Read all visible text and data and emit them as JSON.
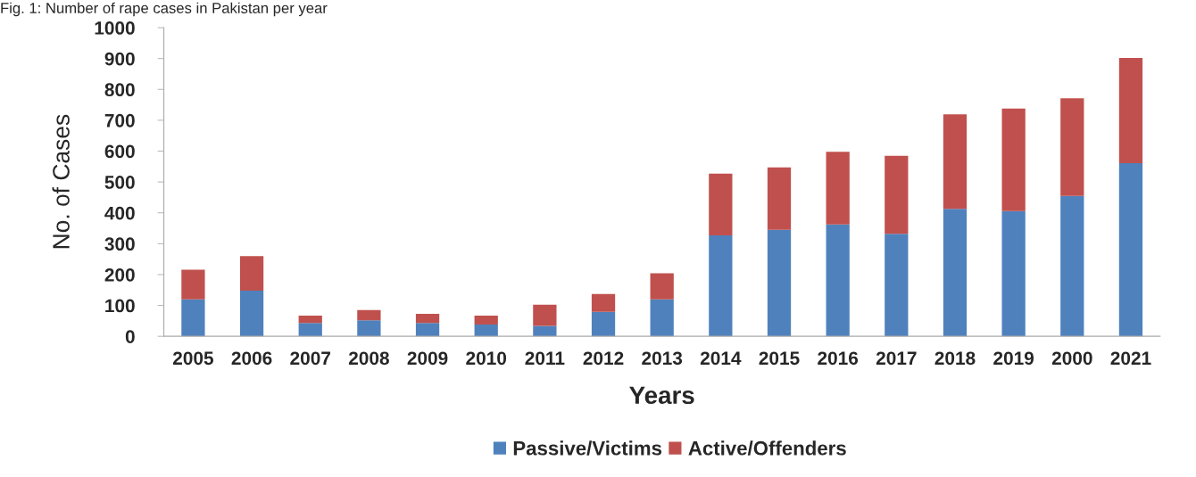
{
  "chart_data": {
    "type": "bar",
    "title": "Fig. 1: Number of rape cases in Pakistan per year",
    "xlabel": "Years",
    "ylabel": "No. of Cases",
    "categories": [
      "2005",
      "2006",
      "2007",
      "2008",
      "2009",
      "2010",
      "2011",
      "2012",
      "2013",
      "2014",
      "2015",
      "2016",
      "2017",
      "2018",
      "2019",
      "2000",
      "2021"
    ],
    "stacked": true,
    "series": [
      {
        "name": "Passive/Victims",
        "color": "#4f81bd",
        "values": [
          120,
          148,
          43,
          52,
          43,
          38,
          34,
          79,
          120,
          327,
          345,
          362,
          332,
          413,
          406,
          455,
          561
        ]
      },
      {
        "name": "Active/Offenders",
        "color": "#c0504d",
        "values": [
          96,
          112,
          24,
          33,
          30,
          29,
          68,
          58,
          84,
          200,
          202,
          236,
          253,
          306,
          332,
          316,
          341
        ]
      }
    ],
    "ylim": [
      0,
      1000
    ],
    "yticks": [
      0,
      100,
      200,
      300,
      400,
      500,
      600,
      700,
      800,
      900,
      1000
    ],
    "grid": false,
    "legend": "bottom"
  }
}
